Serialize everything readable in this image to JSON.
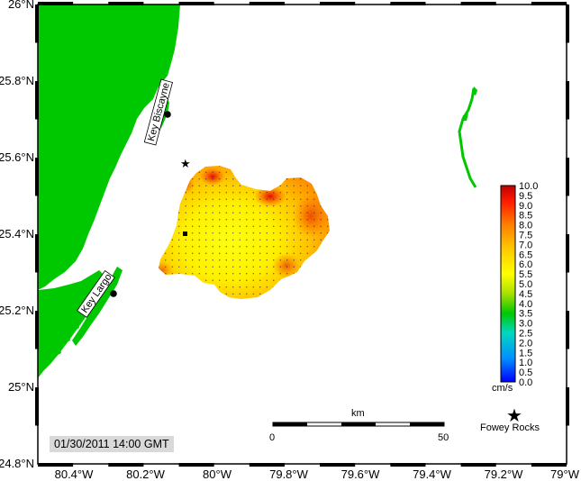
{
  "map": {
    "lat_labels": [
      "26°N",
      "25.8°N",
      "25.6°N",
      "25.4°N",
      "25.2°N",
      "25°N",
      "24.8°N"
    ],
    "lon_labels": [
      "80.4°W",
      "80.2°W",
      "80°W",
      "79.8°W",
      "79.6°W",
      "79.4°W",
      "79.2°W",
      "79°W"
    ],
    "extent": {
      "lon_min": -80.5,
      "lon_max": -79.0,
      "lat_min": 24.8,
      "lat_max": 26.0
    },
    "land_color": "#00c800",
    "places": [
      {
        "name": "Key Biscayne",
        "lon": -80.16,
        "lat": 25.71
      },
      {
        "name": "Key Largo",
        "lon": -80.31,
        "lat": 25.24
      }
    ],
    "stations": [
      {
        "lon": -80.1,
        "lat": 25.59
      },
      {
        "lon": -80.1,
        "lat": 25.4
      }
    ],
    "fowey_rocks": {
      "label": "Fowey Rocks",
      "lon": -79.15,
      "lat": 24.92
    },
    "scale_bar": {
      "title": "km",
      "start_label": "0",
      "end_label": "50"
    },
    "timestamp": "01/30/2011 14:00 GMT"
  },
  "colorbar": {
    "unit": "cm/s",
    "min": 0.0,
    "max": 10.0,
    "labels": [
      "10.0",
      "9.5",
      "9.0",
      "8.5",
      "8.0",
      "7.5",
      "7.0",
      "6.5",
      "6.0",
      "5.5",
      "5.0",
      "4.5",
      "4.0",
      "3.5",
      "3.0",
      "2.5",
      "2.0",
      "1.5",
      "1.0",
      "0.5",
      "0.0"
    ],
    "colors": [
      "#0000ff",
      "#00a0ff",
      "#00e0a0",
      "#00c800",
      "#a0e000",
      "#ffff00",
      "#ffc800",
      "#ff8000",
      "#ff0000",
      "#c00000"
    ]
  }
}
